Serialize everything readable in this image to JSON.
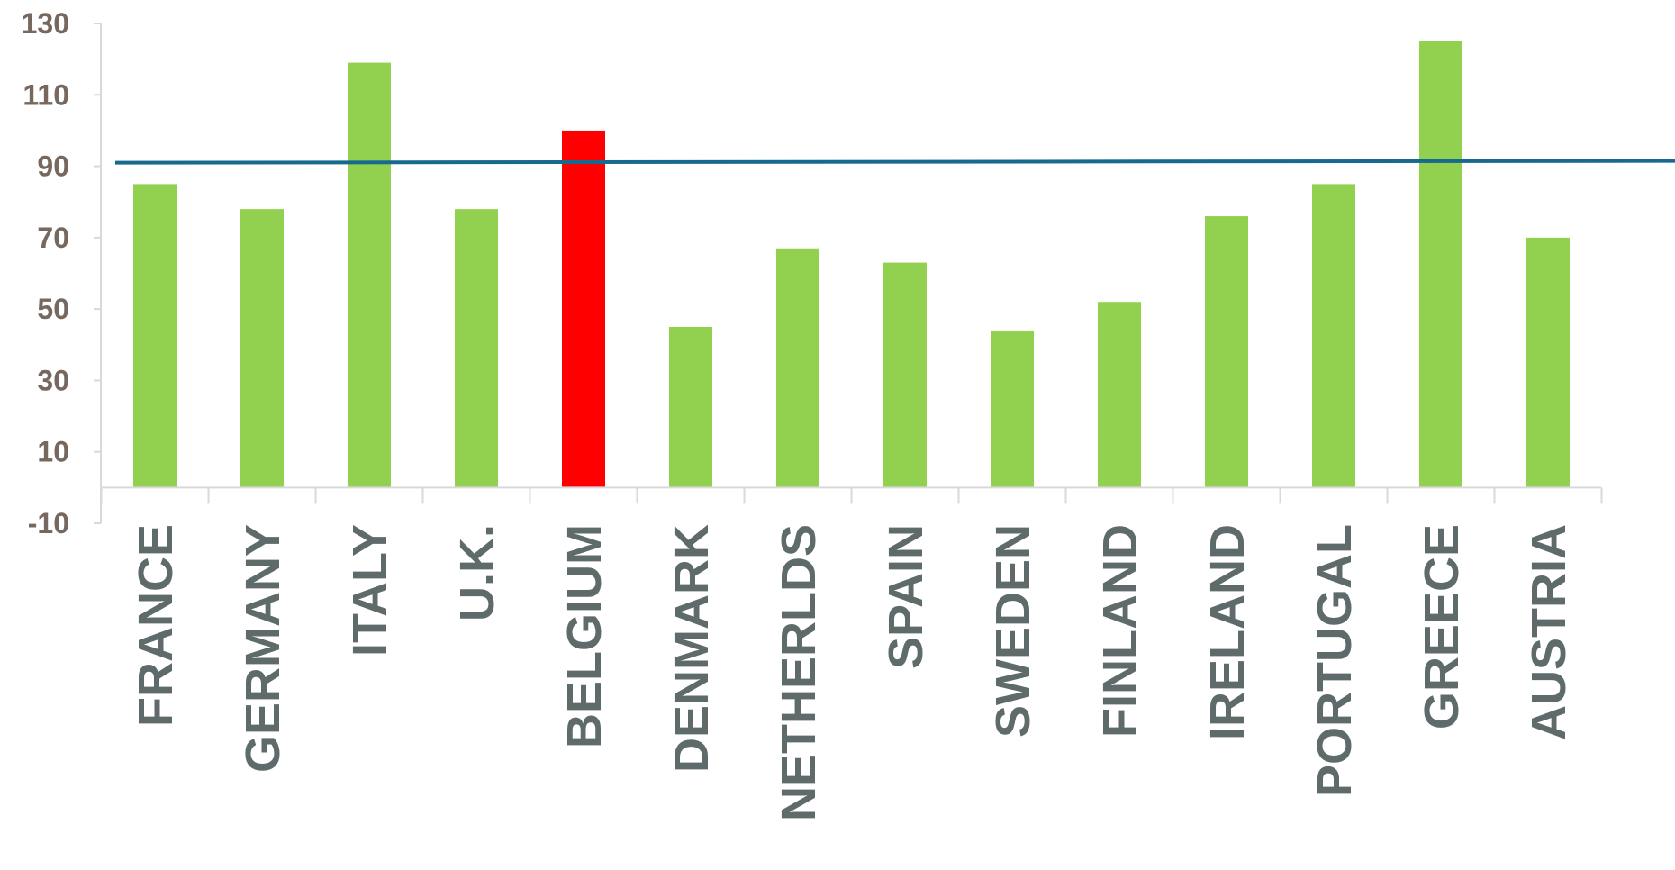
{
  "chart_data": {
    "type": "bar",
    "title": "",
    "xlabel": "",
    "ylabel": "",
    "categories": [
      "FRANCE",
      "GERMANY",
      "ITALY",
      "U.K.",
      "BELGIUM",
      "DENMARK",
      "NETHERLDS",
      "SPAIN",
      "SWEDEN",
      "FINLAND",
      "IRELAND",
      "PORTUGAL",
      "GREECE",
      "AUSTRIA"
    ],
    "values": [
      85,
      78,
      119,
      78,
      100,
      45,
      67,
      63,
      44,
      52,
      76,
      85,
      125,
      70
    ],
    "highlight_category": "BELGIUM",
    "reference_line": {
      "start_value": 91,
      "end_value": 91.5
    },
    "ylim": [
      -10,
      130
    ],
    "yticks": [
      130,
      110,
      90,
      70,
      50,
      30,
      10,
      -10
    ],
    "grid": false,
    "legend": "none",
    "colors": {
      "bar": "#92d050",
      "highlight_bar": "#ff0000",
      "reference_line": "#17698f",
      "axis": "#d9d9d9",
      "ytick_text": "#76685e",
      "xtick_text": "#5f6b6b"
    }
  }
}
